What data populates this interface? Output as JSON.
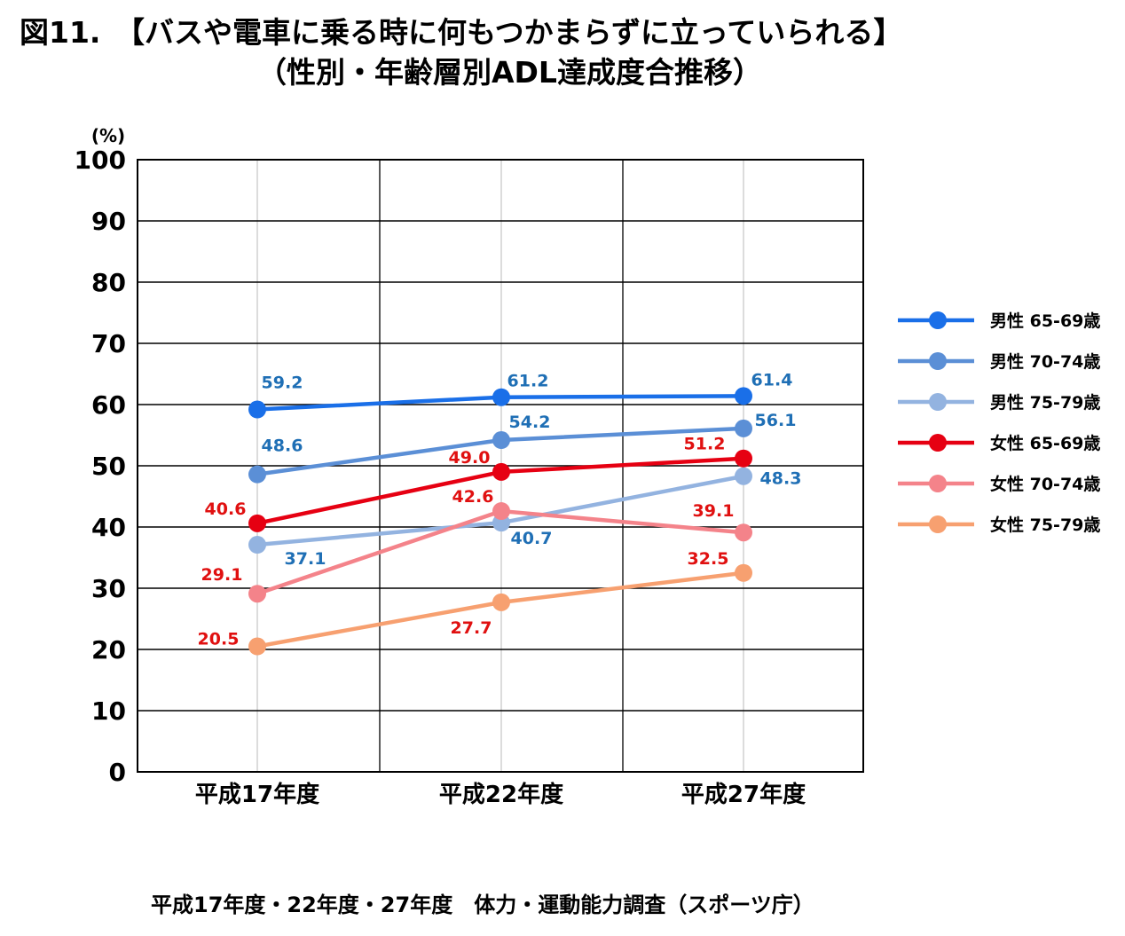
{
  "title": "図11.　【バスや電車に乗る時に何もつかまらずに立っていられる】",
  "subtitle": "（性別・年齢層別ADL達成度合推移）",
  "source": "平成17年度・22年度・27年度　体力・運動能力調査（スポーツ庁）",
  "chart_data": {
    "type": "line",
    "ylabel": "(%)",
    "ylim": [
      0,
      100
    ],
    "yticks": [
      0,
      10,
      20,
      30,
      40,
      50,
      60,
      70,
      80,
      90,
      100
    ],
    "categories": [
      "平成17年度",
      "平成22年度",
      "平成27年度"
    ],
    "grid": true,
    "legend_position": "right",
    "series": [
      {
        "name": "男性 65-69歳",
        "color": "#1a6fe8",
        "label_color": "#1f6fb5",
        "values": [
          59.2,
          61.2,
          61.4
        ],
        "labels": [
          "59.2",
          "61.2",
          "61.4"
        ]
      },
      {
        "name": "男性 70-74歳",
        "color": "#5b8fd6",
        "label_color": "#1f6fb5",
        "values": [
          48.6,
          54.2,
          56.1
        ],
        "labels": [
          "48.6",
          "54.2",
          "56.1"
        ]
      },
      {
        "name": "男性 75-79歳",
        "color": "#93b3e0",
        "label_color": "#1f6fb5",
        "values": [
          37.1,
          40.7,
          48.3
        ],
        "labels": [
          "37.1",
          "40.7",
          "48.3"
        ]
      },
      {
        "name": "女性 65-69歳",
        "color": "#e60012",
        "label_color": "#e01010",
        "values": [
          40.6,
          49.0,
          51.2
        ],
        "labels": [
          "40.6",
          "49.0",
          "51.2"
        ]
      },
      {
        "name": "女性 70-74歳",
        "color": "#f4838a",
        "label_color": "#e01010",
        "values": [
          29.1,
          42.6,
          39.1
        ],
        "labels": [
          "29.1",
          "42.6",
          "39.1"
        ]
      },
      {
        "name": "女性 75-79歳",
        "color": "#f7a070",
        "label_color": "#e01010",
        "values": [
          20.5,
          27.7,
          32.5
        ],
        "labels": [
          "20.5",
          "27.7",
          "32.5"
        ]
      }
    ]
  }
}
